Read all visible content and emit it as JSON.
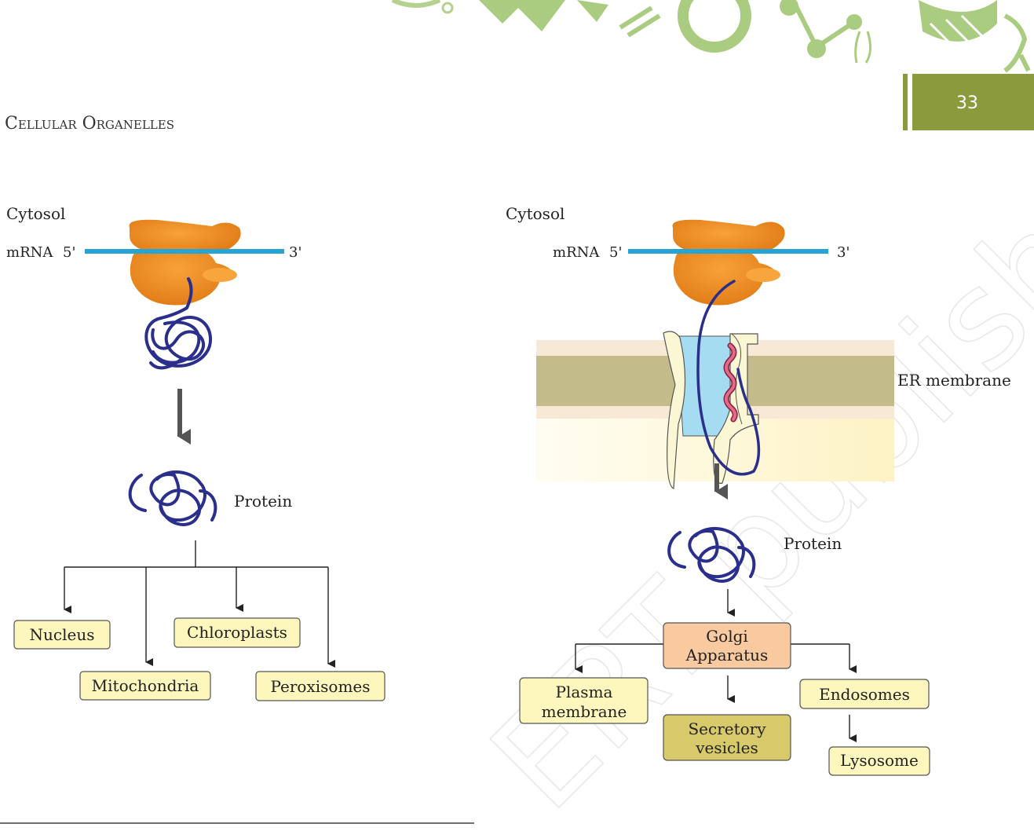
{
  "header": {
    "page_number": "33",
    "chapter_title": "Cellular Organelles"
  },
  "left_diagram": {
    "cytosol_label": "Cytosol",
    "mrna_label": "mRNA",
    "five_prime": "5'",
    "three_prime": "3'",
    "protein_label": "Protein",
    "targets": [
      "Nucleus",
      "Mitochondria",
      "Chloroplasts",
      "Peroxisomes"
    ]
  },
  "right_diagram": {
    "cytosol_label": "Cytosol",
    "mrna_label": "mRNA",
    "five_prime": "5'",
    "three_prime": "3'",
    "er_membrane_label": "ER membrane",
    "protein_label": "Protein",
    "golgi": [
      "Golgi",
      "Apparatus"
    ],
    "plasma_membrane": [
      "Plasma",
      "membrane"
    ],
    "secretory_vesicles": [
      "Secretory",
      "vesicles"
    ],
    "endosomes": "Endosomes",
    "lysosome": "Lysosome"
  },
  "watermark": "ERT published",
  "colors": {
    "accent_green": "#8a9a3c",
    "ribosome": "#ef8a1e",
    "mrna": "#27a4d4",
    "protein": "#2a2f8c",
    "box_fill": "#fdf6bd",
    "golgi_fill": "#f9c9a0",
    "secretory_fill": "#d8c96a",
    "er_band": "#c3bb8a"
  }
}
